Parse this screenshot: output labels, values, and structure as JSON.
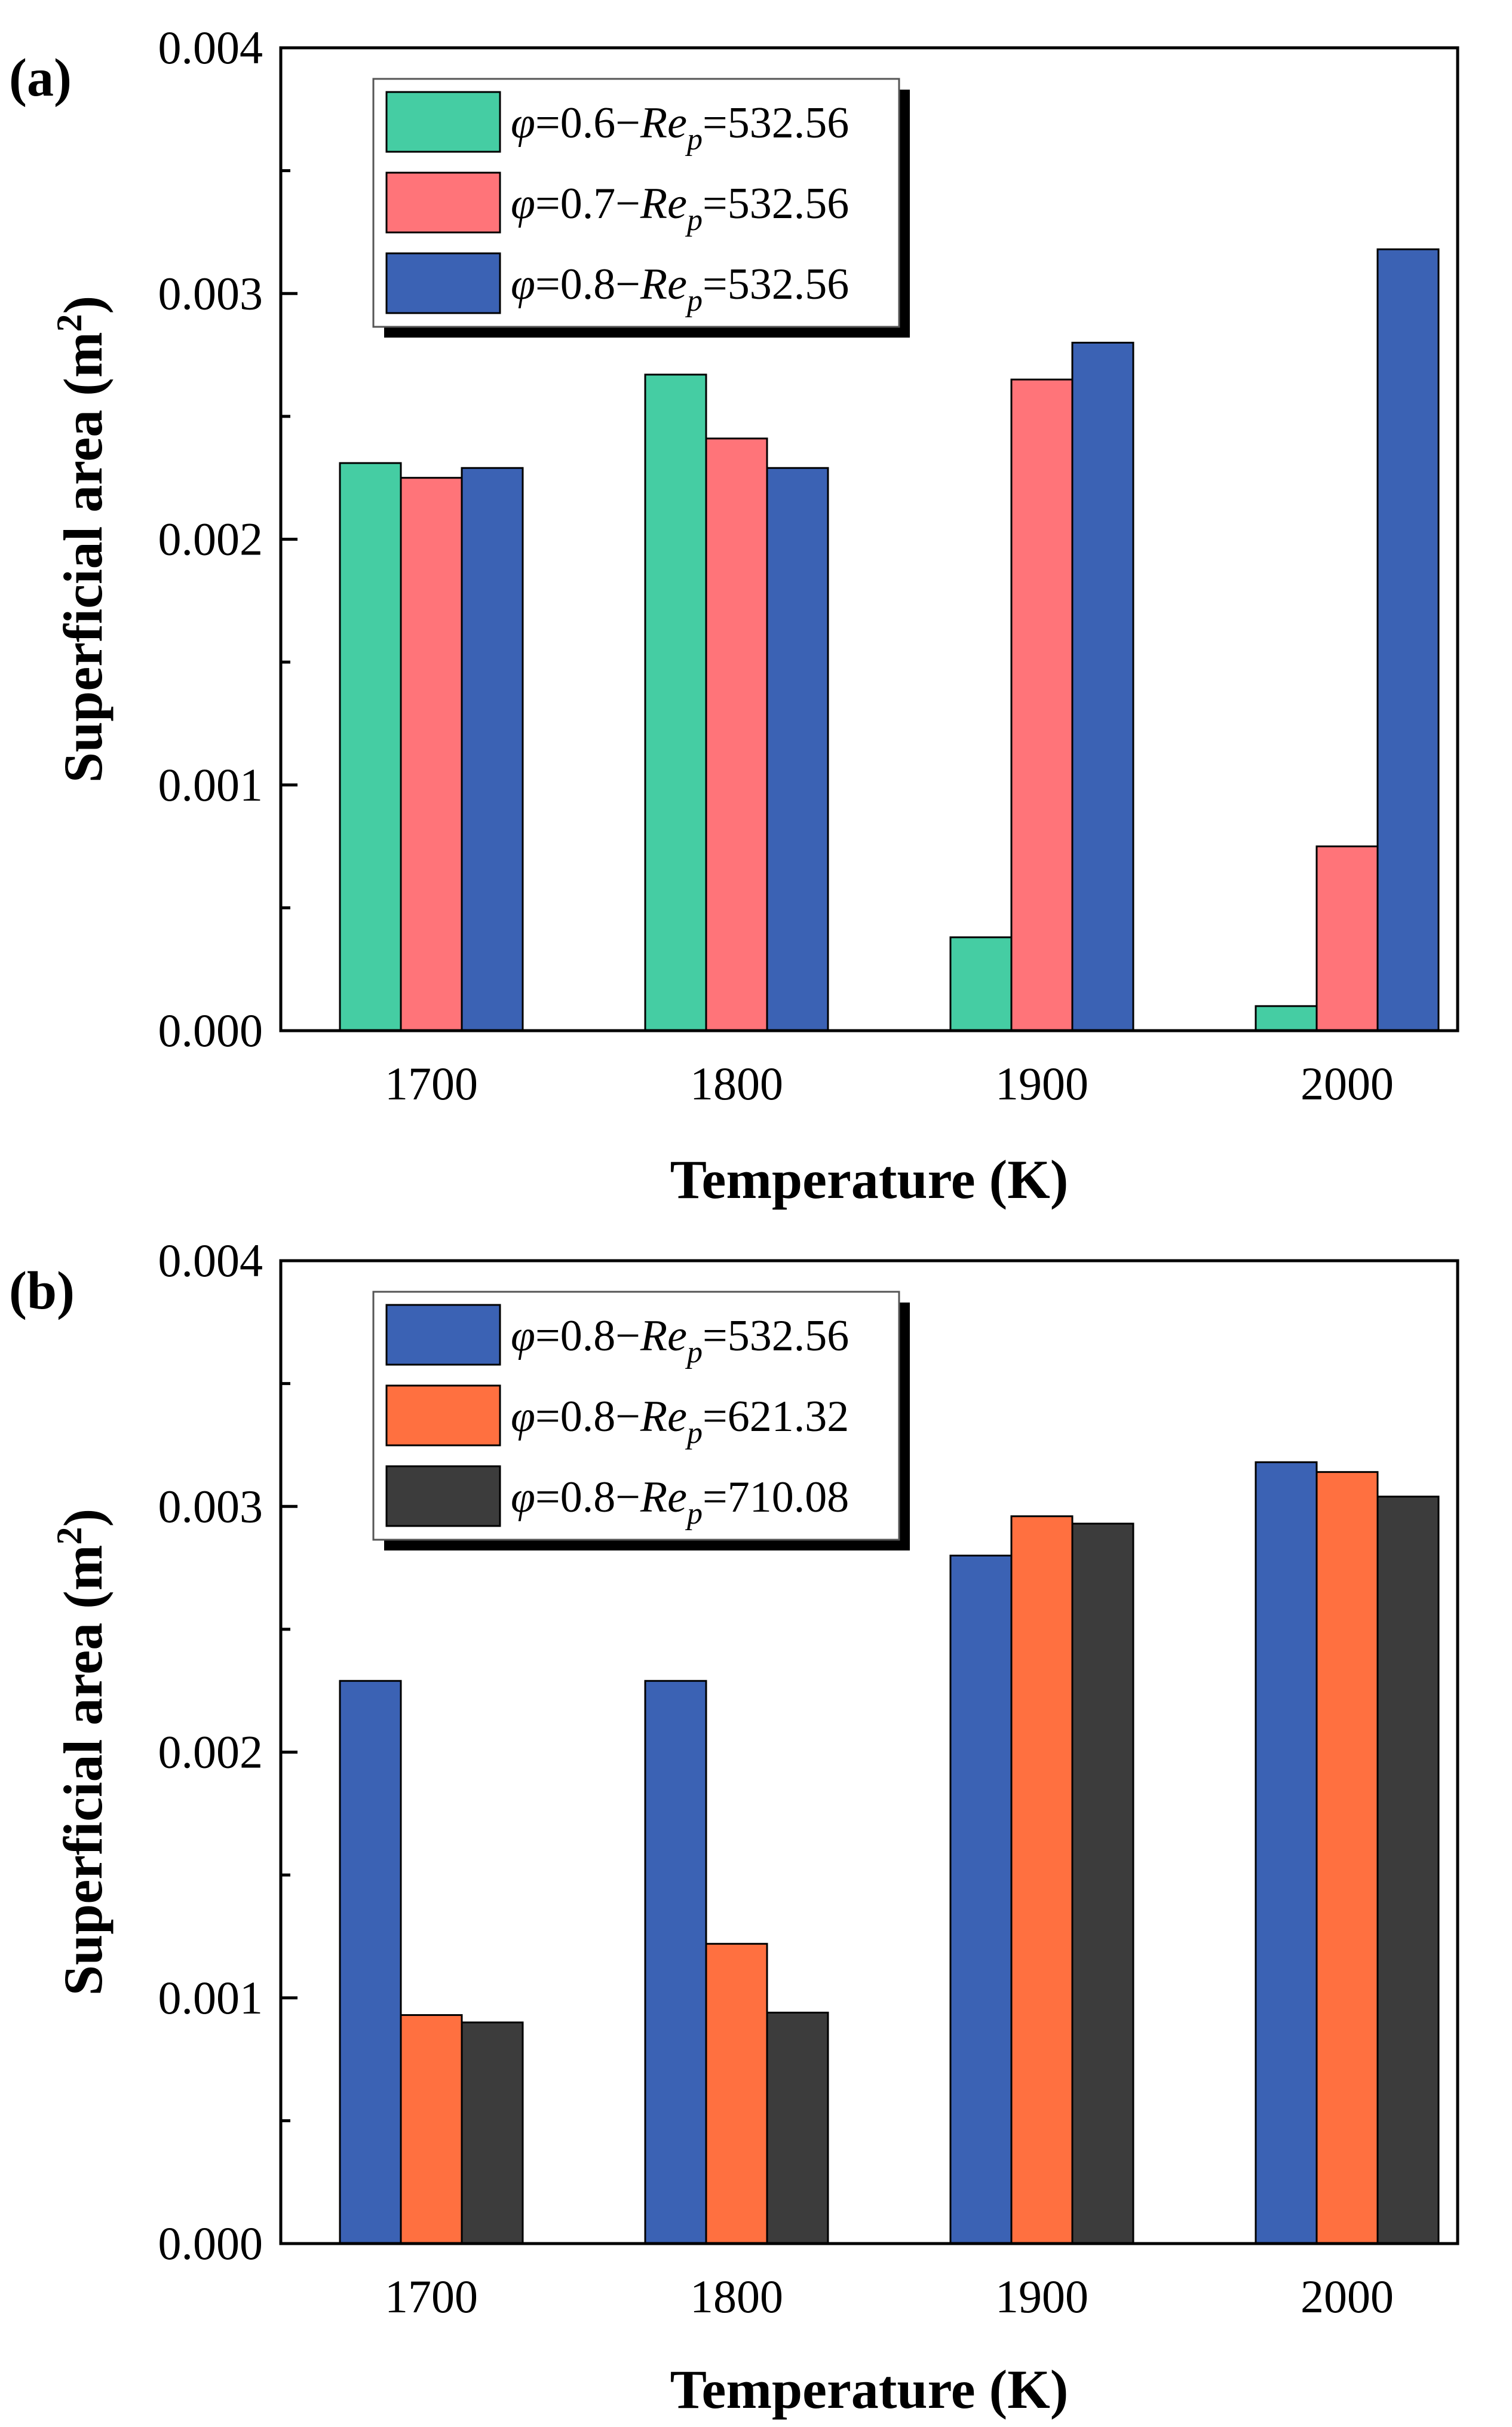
{
  "chart_data": [
    {
      "panel_label": "(a)",
      "type": "bar",
      "xlabel": "Temperature (K)",
      "ylabel": "Superficial area (m",
      "ylabel_sup": "2",
      "ylabel_close": ")",
      "categories": [
        "1700",
        "1800",
        "1900",
        "2000"
      ],
      "ylim": [
        0,
        0.004
      ],
      "y_ticks": [
        "0.000",
        "0.001",
        "0.002",
        "0.003",
        "0.004"
      ],
      "legend_position": "top-left",
      "series": [
        {
          "phi": "0.6",
          "re": "532.56",
          "color": "#45CDA3",
          "values": [
            0.00231,
            0.00267,
            0.00038,
            0.0001
          ]
        },
        {
          "phi": "0.7",
          "re": "532.56",
          "color": "#FF7479",
          "values": [
            0.00225,
            0.00241,
            0.00265,
            0.00075
          ]
        },
        {
          "phi": "0.8",
          "re": "532.56",
          "color": "#3B62B4",
          "values": [
            0.00229,
            0.00229,
            0.0028,
            0.00318
          ]
        }
      ]
    },
    {
      "panel_label": "(b)",
      "type": "bar",
      "xlabel": "Temperature (K)",
      "ylabel": "Superficial area (m",
      "ylabel_sup": "2",
      "ylabel_close": ")",
      "categories": [
        "1700",
        "1800",
        "1900",
        "2000"
      ],
      "ylim": [
        0,
        0.004
      ],
      "y_ticks": [
        "0.000",
        "0.001",
        "0.002",
        "0.003",
        "0.004"
      ],
      "legend_position": "top-left",
      "series": [
        {
          "phi": "0.8",
          "re": "532.56",
          "color": "#3B62B4",
          "values": [
            0.00229,
            0.00229,
            0.0028,
            0.00318
          ]
        },
        {
          "phi": "0.8",
          "re": "621.32",
          "color": "#FF7040",
          "values": [
            0.00093,
            0.00122,
            0.00296,
            0.00314
          ]
        },
        {
          "phi": "0.8",
          "re": "710.08",
          "color": "#3C3C3C",
          "values": [
            0.0009,
            0.00094,
            0.00293,
            0.00304
          ]
        }
      ]
    }
  ],
  "legend_format": {
    "phi_symbol": "φ",
    "eq": "=",
    "dash": "−",
    "re_symbol": "Re",
    "re_sub": "p"
  }
}
